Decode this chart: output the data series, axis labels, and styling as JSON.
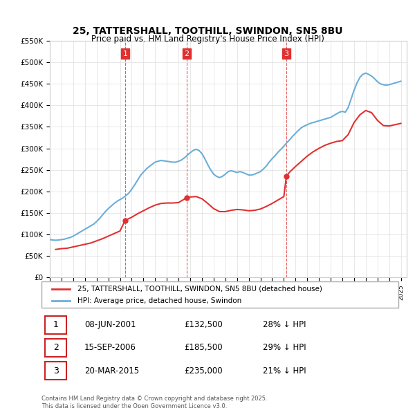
{
  "title": "25, TATTERSHALL, TOOTHILL, SWINDON, SN5 8BU",
  "subtitle": "Price paid vs. HM Land Registry's House Price Index (HPI)",
  "hpi_color": "#6baed6",
  "price_color": "#e03030",
  "vline_color": "#e03030",
  "background_color": "#ffffff",
  "grid_color": "#dddddd",
  "ylim": [
    0,
    550000
  ],
  "yticks": [
    0,
    50000,
    100000,
    150000,
    200000,
    250000,
    300000,
    350000,
    400000,
    450000,
    500000,
    550000
  ],
  "ylabel_format": "£{0}K",
  "sales": [
    {
      "label": "1",
      "date_str": "08-JUN-2001",
      "year": 2001.44,
      "price": 132500
    },
    {
      "label": "2",
      "date_str": "15-SEP-2006",
      "year": 2006.71,
      "price": 185500
    },
    {
      "label": "3",
      "date_str": "20-MAR-2015",
      "year": 2015.22,
      "price": 235000
    }
  ],
  "legend_entries": [
    "25, TATTERSHALL, TOOTHILL, SWINDON, SN5 8BU (detached house)",
    "HPI: Average price, detached house, Swindon"
  ],
  "table_rows": [
    [
      "1",
      "08-JUN-2001",
      "£132,500",
      "28% ↓ HPI"
    ],
    [
      "2",
      "15-SEP-2006",
      "£185,500",
      "29% ↓ HPI"
    ],
    [
      "3",
      "20-MAR-2015",
      "£235,000",
      "21% ↓ HPI"
    ]
  ],
  "footnote": "Contains HM Land Registry data © Crown copyright and database right 2025.\nThis data is licensed under the Open Government Licence v3.0.",
  "hpi_data_x": [
    1995.0,
    1995.25,
    1995.5,
    1995.75,
    1996.0,
    1996.25,
    1996.5,
    1996.75,
    1997.0,
    1997.25,
    1997.5,
    1997.75,
    1998.0,
    1998.25,
    1998.5,
    1998.75,
    1999.0,
    1999.25,
    1999.5,
    1999.75,
    2000.0,
    2000.25,
    2000.5,
    2000.75,
    2001.0,
    2001.25,
    2001.5,
    2001.75,
    2002.0,
    2002.25,
    2002.5,
    2002.75,
    2003.0,
    2003.25,
    2003.5,
    2003.75,
    2004.0,
    2004.25,
    2004.5,
    2004.75,
    2005.0,
    2005.25,
    2005.5,
    2005.75,
    2006.0,
    2006.25,
    2006.5,
    2006.75,
    2007.0,
    2007.25,
    2007.5,
    2007.75,
    2008.0,
    2008.25,
    2008.5,
    2008.75,
    2009.0,
    2009.25,
    2009.5,
    2009.75,
    2010.0,
    2010.25,
    2010.5,
    2010.75,
    2011.0,
    2011.25,
    2011.5,
    2011.75,
    2012.0,
    2012.25,
    2012.5,
    2012.75,
    2013.0,
    2013.25,
    2013.5,
    2013.75,
    2014.0,
    2014.25,
    2014.5,
    2014.75,
    2015.0,
    2015.25,
    2015.5,
    2015.75,
    2016.0,
    2016.25,
    2016.5,
    2016.75,
    2017.0,
    2017.25,
    2017.5,
    2017.75,
    2018.0,
    2018.25,
    2018.5,
    2018.75,
    2019.0,
    2019.25,
    2019.5,
    2019.75,
    2020.0,
    2020.25,
    2020.5,
    2020.75,
    2021.0,
    2021.25,
    2021.5,
    2021.75,
    2022.0,
    2022.25,
    2022.5,
    2022.75,
    2023.0,
    2023.25,
    2023.5,
    2023.75,
    2024.0,
    2024.25,
    2024.5,
    2024.75,
    2025.0
  ],
  "hpi_data_y": [
    88000,
    87000,
    86500,
    87000,
    88000,
    89000,
    91000,
    93000,
    96000,
    100000,
    104000,
    108000,
    112000,
    116000,
    120000,
    124000,
    130000,
    137000,
    145000,
    153000,
    160000,
    166000,
    172000,
    177000,
    181000,
    185000,
    190000,
    196000,
    205000,
    215000,
    226000,
    237000,
    245000,
    252000,
    258000,
    263000,
    268000,
    270000,
    272000,
    271000,
    270000,
    269000,
    268000,
    268000,
    270000,
    273000,
    278000,
    284000,
    290000,
    295000,
    298000,
    295000,
    288000,
    276000,
    262000,
    250000,
    240000,
    235000,
    232000,
    235000,
    240000,
    246000,
    248000,
    246000,
    244000,
    246000,
    244000,
    241000,
    238000,
    238000,
    240000,
    243000,
    246000,
    252000,
    259000,
    268000,
    276000,
    283000,
    291000,
    298000,
    305000,
    313000,
    320000,
    328000,
    335000,
    342000,
    348000,
    352000,
    355000,
    358000,
    360000,
    362000,
    364000,
    366000,
    368000,
    370000,
    372000,
    376000,
    380000,
    384000,
    386000,
    384000,
    395000,
    415000,
    435000,
    452000,
    465000,
    472000,
    475000,
    472000,
    468000,
    462000,
    455000,
    450000,
    448000,
    447000,
    448000,
    450000,
    452000,
    454000,
    456000
  ],
  "price_data_x": [
    1995.5,
    1996.0,
    1996.5,
    1997.0,
    1997.5,
    1998.0,
    1998.5,
    1999.0,
    1999.5,
    2000.0,
    2000.5,
    2001.0,
    2001.44,
    2002.0,
    2002.5,
    2003.0,
    2003.5,
    2004.0,
    2004.5,
    2005.0,
    2005.5,
    2006.0,
    2006.71,
    2007.0,
    2007.5,
    2008.0,
    2008.5,
    2009.0,
    2009.5,
    2010.0,
    2010.5,
    2011.0,
    2011.5,
    2012.0,
    2012.5,
    2013.0,
    2013.5,
    2014.0,
    2014.5,
    2015.0,
    2015.22,
    2015.5,
    2016.0,
    2016.5,
    2017.0,
    2017.5,
    2018.0,
    2018.5,
    2019.0,
    2019.5,
    2020.0,
    2020.5,
    2021.0,
    2021.5,
    2022.0,
    2022.5,
    2023.0,
    2023.5,
    2024.0,
    2024.5,
    2025.0
  ],
  "price_data_y": [
    65000,
    67000,
    68000,
    71000,
    74000,
    77000,
    80000,
    85000,
    90000,
    96000,
    102000,
    108000,
    132500,
    140000,
    148000,
    155000,
    162000,
    168000,
    172000,
    173000,
    173000,
    174000,
    185500,
    187000,
    188000,
    183000,
    172000,
    160000,
    153000,
    153000,
    156000,
    158000,
    157000,
    155000,
    156000,
    159000,
    165000,
    172000,
    180000,
    188000,
    235000,
    245000,
    258000,
    270000,
    282000,
    292000,
    300000,
    307000,
    312000,
    316000,
    318000,
    332000,
    360000,
    378000,
    388000,
    383000,
    365000,
    353000,
    352000,
    355000,
    358000
  ]
}
